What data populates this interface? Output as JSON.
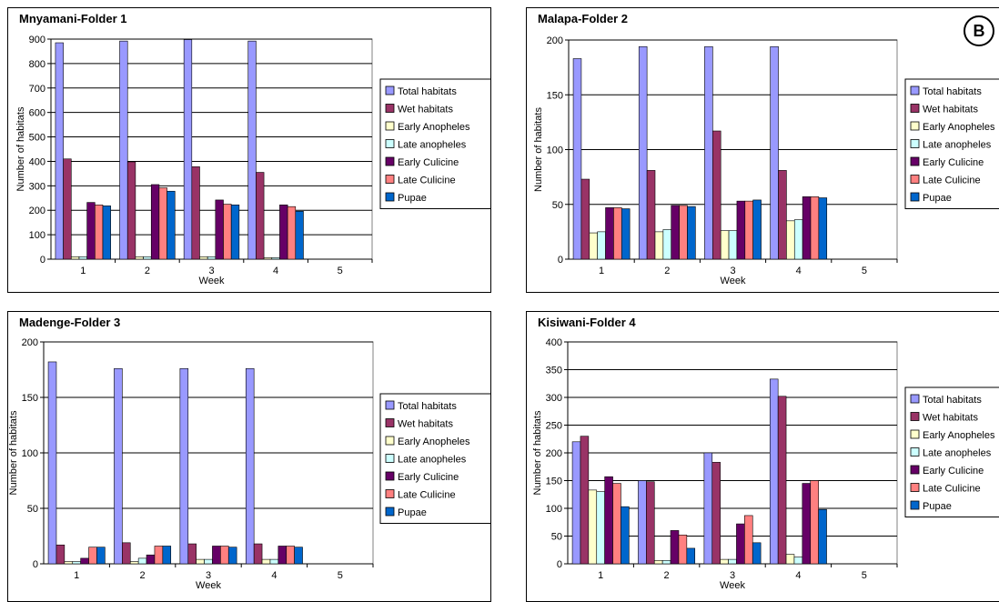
{
  "badge": "B",
  "legend_colors": {
    "Total habitats": "#9999ff",
    "Wet habitats": "#993366",
    "Early Anopheles": "#ffffcc",
    "Late anopheles": "#ccffff",
    "Early Culicine": "#660066",
    "Late Culicine": "#ff8080",
    "Pupae": "#0066cc"
  },
  "chart_data": [
    {
      "type": "bar",
      "title": "Mnyamani-Folder 1",
      "xlabel": "Week",
      "ylabel": "Number of habitats",
      "categories": [
        "1",
        "2",
        "3",
        "4",
        "5"
      ],
      "ylim": [
        0,
        900
      ],
      "yticks": [
        0,
        100,
        200,
        300,
        400,
        500,
        600,
        700,
        800,
        900
      ],
      "grid": true,
      "legend_position": "right",
      "series": [
        {
          "name": "Total habitats",
          "values": [
            885,
            892,
            898,
            892,
            0
          ]
        },
        {
          "name": "Wet habitats",
          "values": [
            410,
            398,
            378,
            355,
            0
          ]
        },
        {
          "name": "Early Anopheles",
          "values": [
            10,
            10,
            10,
            6,
            0
          ]
        },
        {
          "name": "Late anopheles",
          "values": [
            10,
            10,
            10,
            6,
            0
          ]
        },
        {
          "name": "Early Culicine",
          "values": [
            232,
            305,
            242,
            222,
            0
          ]
        },
        {
          "name": "Late Culicine",
          "values": [
            222,
            292,
            225,
            215,
            0
          ]
        },
        {
          "name": "Pupae",
          "values": [
            218,
            278,
            222,
            196,
            0
          ]
        }
      ]
    },
    {
      "type": "bar",
      "title": "Malapa-Folder 2",
      "xlabel": "Week",
      "ylabel": "Number of habitats",
      "categories": [
        "1",
        "2",
        "3",
        "4",
        "5"
      ],
      "ylim": [
        0,
        200
      ],
      "yticks": [
        0,
        50,
        100,
        150,
        200
      ],
      "grid": true,
      "legend_position": "right",
      "series": [
        {
          "name": "Total habitats",
          "values": [
            183,
            194,
            194,
            194,
            0
          ]
        },
        {
          "name": "Wet habitats",
          "values": [
            73,
            81,
            117,
            81,
            0
          ]
        },
        {
          "name": "Early Anopheles",
          "values": [
            24,
            25,
            26,
            35,
            0
          ]
        },
        {
          "name": "Late anopheles",
          "values": [
            25,
            27,
            26,
            36,
            0
          ]
        },
        {
          "name": "Early Culicine",
          "values": [
            47,
            49,
            53,
            57,
            0
          ]
        },
        {
          "name": "Late Culicine",
          "values": [
            47,
            49,
            53,
            57,
            0
          ]
        },
        {
          "name": "Pupae",
          "values": [
            46,
            48,
            54,
            56,
            0
          ]
        }
      ]
    },
    {
      "type": "bar",
      "title": "Madenge-Folder 3",
      "xlabel": "Week",
      "ylabel": "Number of habitats",
      "categories": [
        "1",
        "2",
        "3",
        "4",
        "5"
      ],
      "ylim": [
        0,
        200
      ],
      "yticks": [
        0,
        50,
        100,
        150,
        200
      ],
      "grid": true,
      "legend_position": "right",
      "series": [
        {
          "name": "Total habitats",
          "values": [
            182,
            176,
            176,
            176,
            0
          ]
        },
        {
          "name": "Wet habitats",
          "values": [
            17,
            19,
            18,
            18,
            0
          ]
        },
        {
          "name": "Early Anopheles",
          "values": [
            2,
            2,
            4,
            4,
            0
          ]
        },
        {
          "name": "Late anopheles",
          "values": [
            2,
            5,
            4,
            4,
            0
          ]
        },
        {
          "name": "Early Culicine",
          "values": [
            5,
            8,
            16,
            16,
            0
          ]
        },
        {
          "name": "Late Culicine",
          "values": [
            15,
            16,
            16,
            16,
            0
          ]
        },
        {
          "name": "Pupae",
          "values": [
            15,
            16,
            15,
            15,
            0
          ]
        }
      ]
    },
    {
      "type": "bar",
      "title": "Kisiwani-Folder 4",
      "xlabel": "Week",
      "ylabel": "Number of habitats",
      "categories": [
        "1",
        "2",
        "3",
        "4",
        "5"
      ],
      "ylim": [
        0,
        400
      ],
      "yticks": [
        0,
        50,
        100,
        150,
        200,
        250,
        300,
        350,
        400
      ],
      "grid": true,
      "legend_position": "right",
      "series": [
        {
          "name": "Total habitats",
          "values": [
            220,
            150,
            200,
            333,
            0
          ]
        },
        {
          "name": "Wet habitats",
          "values": [
            230,
            148,
            183,
            302,
            0
          ]
        },
        {
          "name": "Early Anopheles",
          "values": [
            133,
            6,
            8,
            17,
            0
          ]
        },
        {
          "name": "Late anopheles",
          "values": [
            130,
            6,
            8,
            12,
            0
          ]
        },
        {
          "name": "Early Culicine",
          "values": [
            157,
            60,
            72,
            145,
            0
          ]
        },
        {
          "name": "Late Culicine",
          "values": [
            145,
            52,
            87,
            150,
            0
          ]
        },
        {
          "name": "Pupae",
          "values": [
            103,
            28,
            38,
            98,
            0
          ]
        }
      ]
    }
  ]
}
